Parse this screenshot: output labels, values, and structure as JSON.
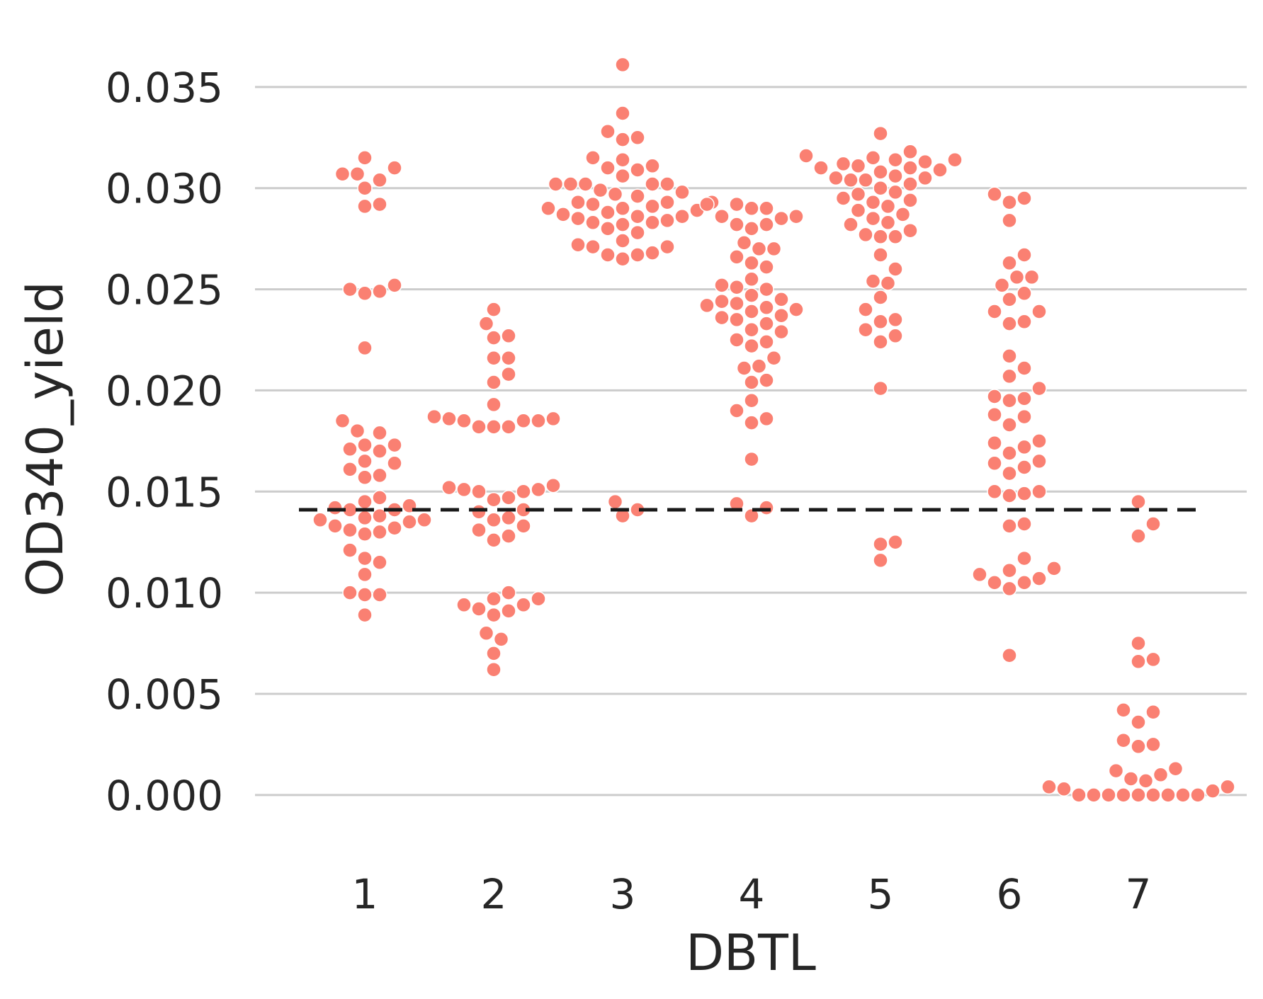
{
  "chart_data": {
    "type": "scatter",
    "subtype": "swarm",
    "title": "",
    "xlabel": "DBTL",
    "ylabel": "OD340_yield",
    "categories": [
      "1",
      "2",
      "3",
      "4",
      "5",
      "6",
      "7"
    ],
    "ylim": [
      -0.0027,
      0.0372
    ],
    "yticks": [
      "0.000",
      "0.005",
      "0.010",
      "0.015",
      "0.020",
      "0.025",
      "0.030",
      "0.035"
    ],
    "grid": "horizontal",
    "point_color": "#fa8072",
    "reference_line": {
      "y": 0.0141,
      "style": "dashed",
      "color": "#1a1a1a"
    },
    "series": [
      {
        "category": "1",
        "values": [
          0.0315,
          0.0307,
          0.0307,
          0.031,
          0.0304,
          0.03,
          0.0291,
          0.0292,
          0.025,
          0.0248,
          0.0249,
          0.0252,
          0.0221,
          0.0185,
          0.018,
          0.0179,
          0.0173,
          0.0171,
          0.017,
          0.0173,
          0.0165,
          0.0164,
          0.0161,
          0.0158,
          0.0157,
          0.0147,
          0.0145,
          0.0143,
          0.0142,
          0.0141,
          0.0141,
          0.0138,
          0.0137,
          0.0136,
          0.0136,
          0.0135,
          0.0133,
          0.0131,
          0.0132,
          0.013,
          0.0129,
          0.0121,
          0.0117,
          0.0115,
          0.0109,
          0.0099,
          0.0099,
          0.01,
          0.0089
        ]
      },
      {
        "category": "2",
        "values": [
          0.024,
          0.0233,
          0.0227,
          0.0226,
          0.0216,
          0.0216,
          0.0208,
          0.0204,
          0.0193,
          0.0187,
          0.0186,
          0.0185,
          0.0182,
          0.0182,
          0.0182,
          0.0185,
          0.0185,
          0.0186,
          0.0152,
          0.015,
          0.0151,
          0.015,
          0.0151,
          0.0153,
          0.0147,
          0.0146,
          0.0141,
          0.014,
          0.0137,
          0.0136,
          0.0133,
          0.0131,
          0.0128,
          0.0126,
          0.01,
          0.0097,
          0.0094,
          0.0097,
          0.0094,
          0.0091,
          0.0092,
          0.0089,
          0.008,
          0.0077,
          0.007,
          0.0062
        ]
      },
      {
        "category": "3",
        "values": [
          0.0361,
          0.0337,
          0.0328,
          0.0325,
          0.0324,
          0.0315,
          0.0314,
          0.0311,
          0.031,
          0.0309,
          0.0306,
          0.0302,
          0.0302,
          0.0302,
          0.0302,
          0.0302,
          0.0299,
          0.0298,
          0.0297,
          0.0296,
          0.0293,
          0.0293,
          0.0293,
          0.0292,
          0.0291,
          0.029,
          0.029,
          0.0289,
          0.0288,
          0.0287,
          0.0286,
          0.0286,
          0.0285,
          0.0284,
          0.0283,
          0.0283,
          0.0282,
          0.028,
          0.0278,
          0.0274,
          0.0272,
          0.0271,
          0.0271,
          0.0268,
          0.0267,
          0.0267,
          0.0265,
          0.0145,
          0.0141,
          0.0138
        ]
      },
      {
        "category": "4",
        "values": [
          0.0292,
          0.0292,
          0.029,
          0.029,
          0.0286,
          0.0286,
          0.0285,
          0.0282,
          0.0282,
          0.028,
          0.0273,
          0.027,
          0.027,
          0.0266,
          0.0263,
          0.0261,
          0.0255,
          0.0252,
          0.0251,
          0.025,
          0.0247,
          0.0245,
          0.0244,
          0.0243,
          0.0242,
          0.0241,
          0.024,
          0.0239,
          0.0237,
          0.0236,
          0.0235,
          0.0233,
          0.023,
          0.0229,
          0.0225,
          0.0224,
          0.0222,
          0.0216,
          0.0212,
          0.0211,
          0.0205,
          0.0204,
          0.0195,
          0.019,
          0.0186,
          0.0184,
          0.0166,
          0.0144,
          0.0142,
          0.0138
        ]
      },
      {
        "category": "5",
        "values": [
          0.0327,
          0.0318,
          0.0316,
          0.0315,
          0.0314,
          0.0314,
          0.0313,
          0.0312,
          0.0311,
          0.031,
          0.031,
          0.0309,
          0.0308,
          0.0306,
          0.0305,
          0.0305,
          0.0304,
          0.0304,
          0.0302,
          0.03,
          0.0298,
          0.0297,
          0.0295,
          0.0294,
          0.0293,
          0.0291,
          0.0289,
          0.0287,
          0.0285,
          0.0283,
          0.0282,
          0.0279,
          0.0277,
          0.0276,
          0.0276,
          0.0267,
          0.026,
          0.0254,
          0.0253,
          0.0246,
          0.024,
          0.0235,
          0.0234,
          0.023,
          0.0227,
          0.0224,
          0.0201,
          0.0125,
          0.0124,
          0.0116
        ]
      },
      {
        "category": "6",
        "values": [
          0.0297,
          0.0295,
          0.0293,
          0.0284,
          0.0267,
          0.0263,
          0.0256,
          0.0256,
          0.0252,
          0.0248,
          0.0245,
          0.0239,
          0.0239,
          0.0234,
          0.0233,
          0.0217,
          0.0211,
          0.0207,
          0.0201,
          0.0197,
          0.0196,
          0.0195,
          0.0188,
          0.0187,
          0.0183,
          0.0175,
          0.0174,
          0.0172,
          0.0169,
          0.0165,
          0.0164,
          0.0162,
          0.0159,
          0.015,
          0.015,
          0.0149,
          0.0148,
          0.0134,
          0.0133,
          0.0117,
          0.0112,
          0.0111,
          0.0109,
          0.0107,
          0.0105,
          0.0105,
          0.0102,
          0.0069
        ]
      },
      {
        "category": "7",
        "values": [
          0.0145,
          0.0134,
          0.0128,
          0.0075,
          0.0067,
          0.0066,
          0.0042,
          0.0041,
          0.0036,
          0.0027,
          0.0025,
          0.0024,
          0.0013,
          0.0012,
          0.001,
          0.0008,
          0.0007,
          0.0004,
          0.0004,
          0.0003,
          0.0002,
          0.0,
          0.0,
          0.0,
          0.0,
          0.0,
          0.0,
          0.0,
          0.0,
          0.0
        ]
      }
    ]
  }
}
